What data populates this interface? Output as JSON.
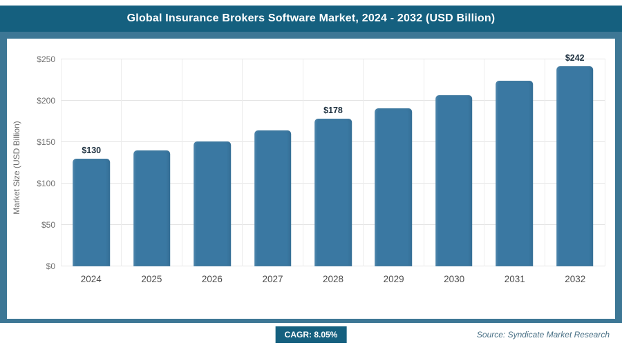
{
  "header": {
    "title": "Global Insurance Brokers Software Market, 2024 - 2032 (USD Billion)"
  },
  "chart_data": {
    "type": "bar",
    "title": "Global Insurance Brokers Software Market, 2024 - 2032 (USD Billion)",
    "categories": [
      "2024",
      "2025",
      "2026",
      "2027",
      "2028",
      "2029",
      "2030",
      "2031",
      "2032"
    ],
    "values": [
      130,
      140,
      151,
      164,
      178,
      191,
      207,
      224,
      242
    ],
    "data_labels": {
      "2024": "$130",
      "2028": "$178",
      "2032": "$242"
    },
    "xlabel": "",
    "ylabel": "Market Size (USD Billion)",
    "ylim": [
      0,
      250
    ],
    "ytick_values": [
      0,
      50,
      100,
      150,
      200,
      250
    ],
    "ytick_labels": [
      "$0",
      "$50",
      "$100",
      "$150",
      "$200",
      "$250"
    ],
    "grid": "horizontal-and-vertical",
    "legend": "none"
  },
  "colors": {
    "bar": "#3a78a2",
    "header_background": "#15607f",
    "frame_background": "#3d7795",
    "badge_background": "#15607f"
  },
  "footer": {
    "cagr": "CAGR: 8.05%",
    "source": "Source: Syndicate Market Research"
  }
}
